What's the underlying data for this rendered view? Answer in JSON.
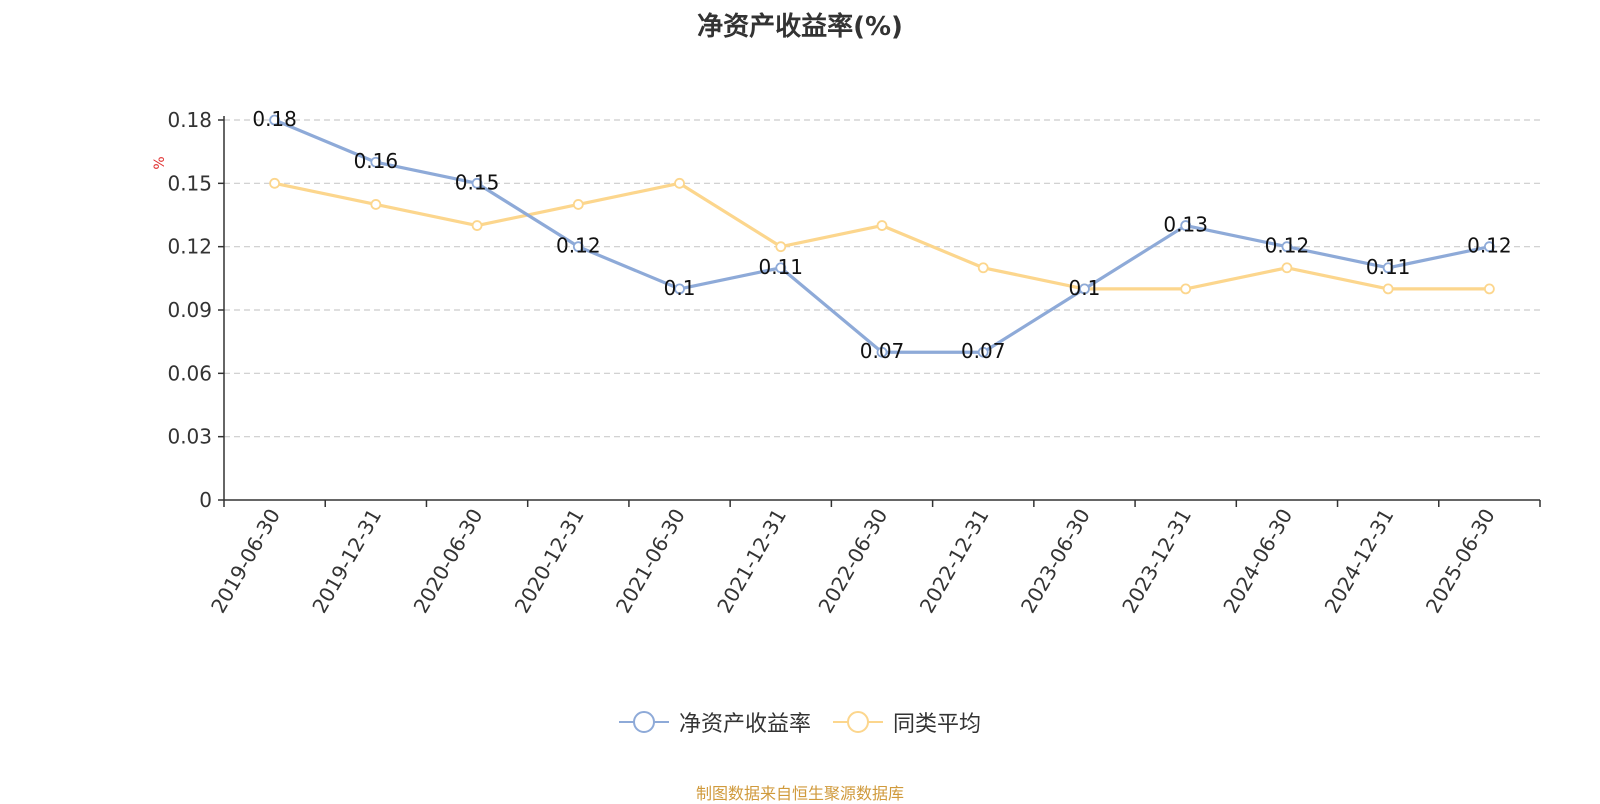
{
  "title": "净资产收益率(%)",
  "unit_label": "%",
  "source": "制图数据来自恒生聚源数据库",
  "colors": {
    "series1": "#8eaad8",
    "series2": "#fcd68d",
    "grid": "#cccccc",
    "axis": "#333333",
    "unit": "#e03030"
  },
  "chart_data": {
    "type": "line",
    "categories": [
      "2019-06-30",
      "2019-12-31",
      "2020-06-30",
      "2020-12-31",
      "2021-06-30",
      "2021-12-31",
      "2022-06-30",
      "2022-12-31",
      "2023-06-30",
      "2023-12-31",
      "2024-06-30",
      "2024-12-31",
      "2025-06-30"
    ],
    "series": [
      {
        "name": "净资产收益率",
        "values": [
          0.18,
          0.16,
          0.15,
          0.12,
          0.1,
          0.11,
          0.07,
          0.07,
          0.1,
          0.13,
          0.12,
          0.11,
          0.12
        ],
        "show_labels": true
      },
      {
        "name": "同类平均",
        "values": [
          0.15,
          0.14,
          0.13,
          0.14,
          0.15,
          0.12,
          0.13,
          0.11,
          0.1,
          0.1,
          0.11,
          0.1,
          0.1
        ],
        "show_labels": false
      }
    ],
    "yticks": [
      "0",
      "0.03",
      "0.06",
      "0.09",
      "0.12",
      "0.15",
      "0.18"
    ],
    "ylim": [
      0,
      0.18
    ],
    "grid": true,
    "legend_position": "bottom"
  }
}
